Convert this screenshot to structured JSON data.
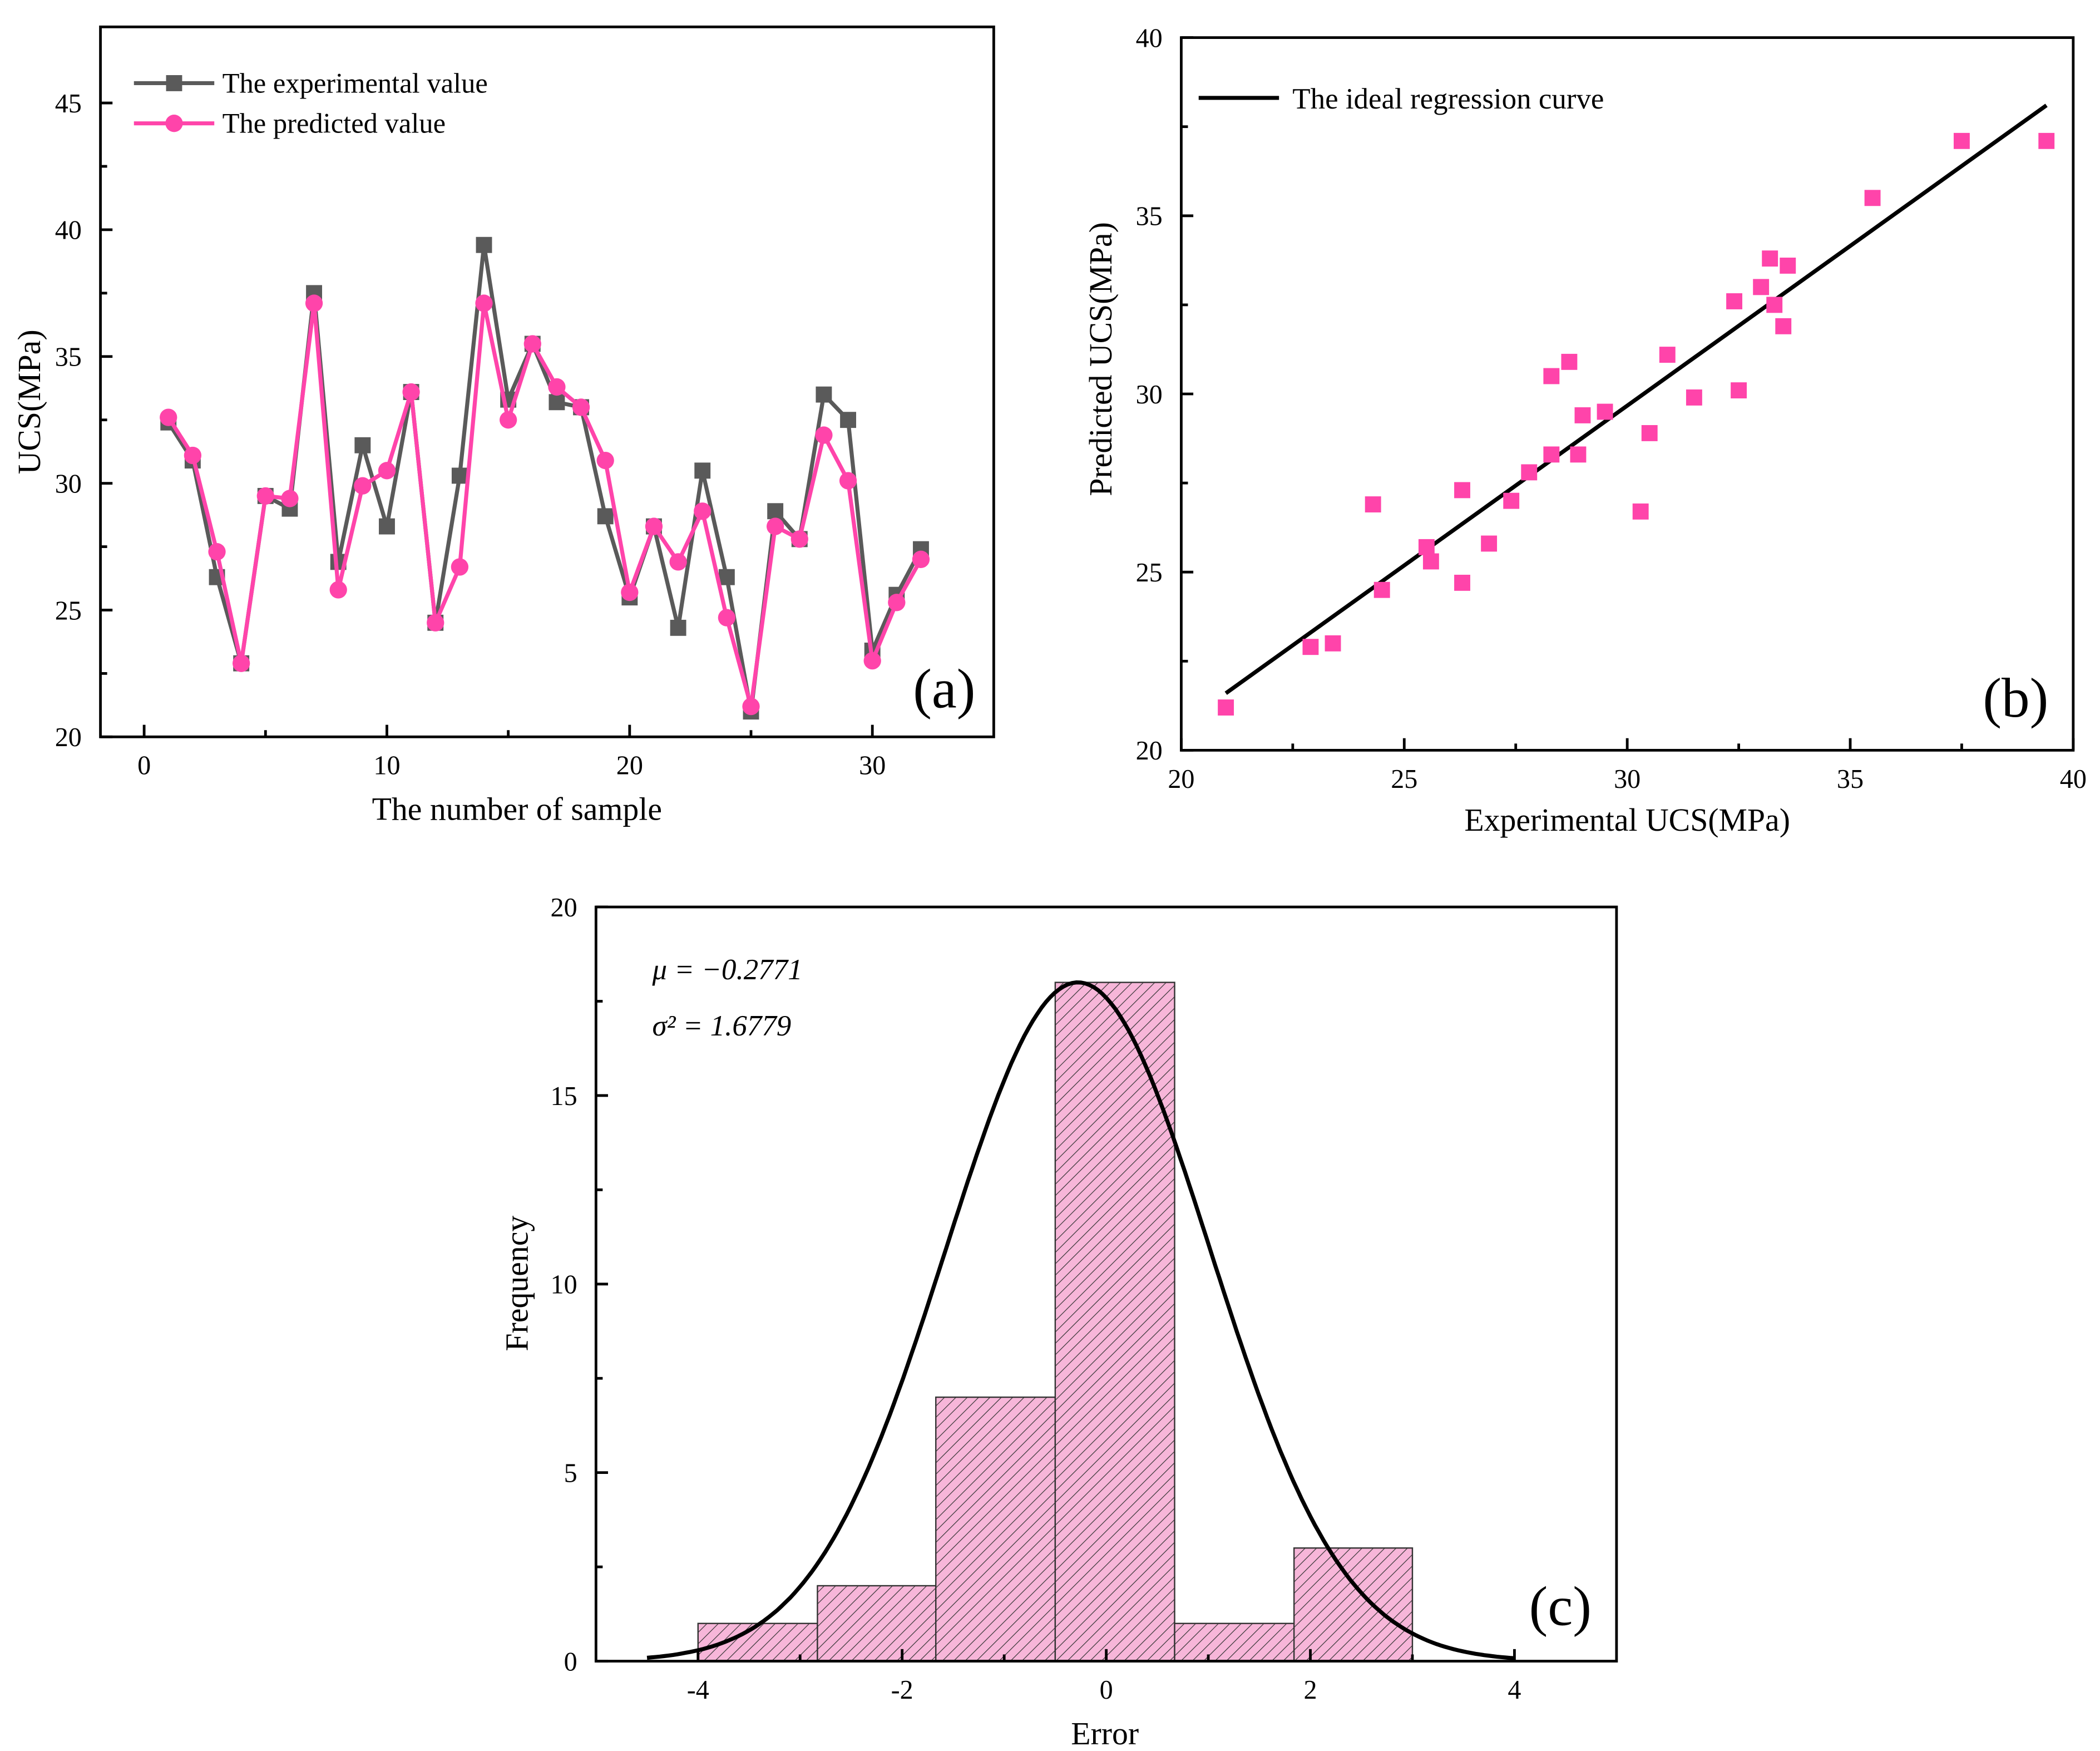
{
  "colors": {
    "experimental": "#5a5a5a",
    "predicted": "#ff44aa",
    "hist_fill": "#f7b6d9",
    "line": "#000000"
  },
  "chart_data": [
    {
      "type": "line",
      "panel_label": "(a)",
      "xlabel": "The number of sample",
      "ylabel": "UCS(MPa)",
      "xlim": [
        -1.8,
        35
      ],
      "ylim": [
        20,
        48
      ],
      "xticks": [
        0,
        10,
        20,
        30
      ],
      "yticks": [
        20,
        25,
        30,
        35,
        40,
        45
      ],
      "legend_position": "top-left",
      "x": [
        1,
        2,
        3,
        4,
        5,
        6,
        7,
        8,
        9,
        10,
        11,
        12,
        13,
        14,
        15,
        16,
        17,
        18,
        19,
        20,
        21,
        22,
        23,
        24,
        25,
        26,
        27,
        28,
        29,
        30,
        31,
        32
      ],
      "series": [
        {
          "name": "The experimental value",
          "marker": "square",
          "values": [
            32.4,
            30.9,
            26.3,
            22.9,
            29.5,
            29.0,
            37.5,
            26.9,
            31.5,
            28.3,
            33.6,
            24.5,
            30.3,
            39.4,
            33.3,
            35.5,
            33.2,
            33.0,
            28.7,
            25.5,
            28.3,
            24.3,
            30.5,
            26.3,
            21.0,
            28.9,
            27.8,
            33.5,
            32.5,
            23.4,
            25.6,
            27.4
          ]
        },
        {
          "name": "The predicted value",
          "marker": "circle",
          "values": [
            32.6,
            31.1,
            27.3,
            22.9,
            29.5,
            29.4,
            37.1,
            25.8,
            29.9,
            30.5,
            33.6,
            24.5,
            26.7,
            37.1,
            32.5,
            35.5,
            33.8,
            33.0,
            30.9,
            25.7,
            28.3,
            26.9,
            28.9,
            24.7,
            21.2,
            28.3,
            27.8,
            31.9,
            30.1,
            23.0,
            25.3,
            27.0
          ]
        }
      ]
    },
    {
      "type": "scatter",
      "panel_label": "(b)",
      "xlabel": "Experimental UCS(MPa)",
      "ylabel": "Predicted UCS(MPa)",
      "xlim": [
        20,
        40
      ],
      "ylim": [
        20,
        40
      ],
      "xticks": [
        20,
        25,
        30,
        35,
        40
      ],
      "yticks": [
        20,
        25,
        30,
        35,
        40
      ],
      "legend_position": "top-left",
      "line": {
        "name": "The ideal regression curve",
        "x": [
          21.0,
          39.4
        ],
        "y": [
          21.6,
          38.1
        ]
      },
      "points_from": "panel (a) experimental vs predicted"
    },
    {
      "type": "bar",
      "panel_label": "(c)",
      "xlabel": "Error",
      "ylabel": "Frequency",
      "xlim": [
        -5,
        5
      ],
      "ylim": [
        0,
        20
      ],
      "xticks": [
        -4,
        -2,
        0,
        2,
        4
      ],
      "yticks": [
        0,
        5,
        10,
        15,
        20
      ],
      "bin_edges": [
        -4.0,
        -2.83,
        -1.67,
        -0.5,
        0.67,
        1.84,
        3.0
      ],
      "values": [
        1,
        2,
        7,
        18,
        1,
        3
      ],
      "fit": {
        "mu": -0.2771,
        "sigma2": 1.6779,
        "peak": 18,
        "range": [
          -4.5,
          4.0
        ]
      },
      "annotations": {
        "mu_label": "μ = −0.2771",
        "sigma_label": "σ² = 1.6779"
      }
    }
  ]
}
